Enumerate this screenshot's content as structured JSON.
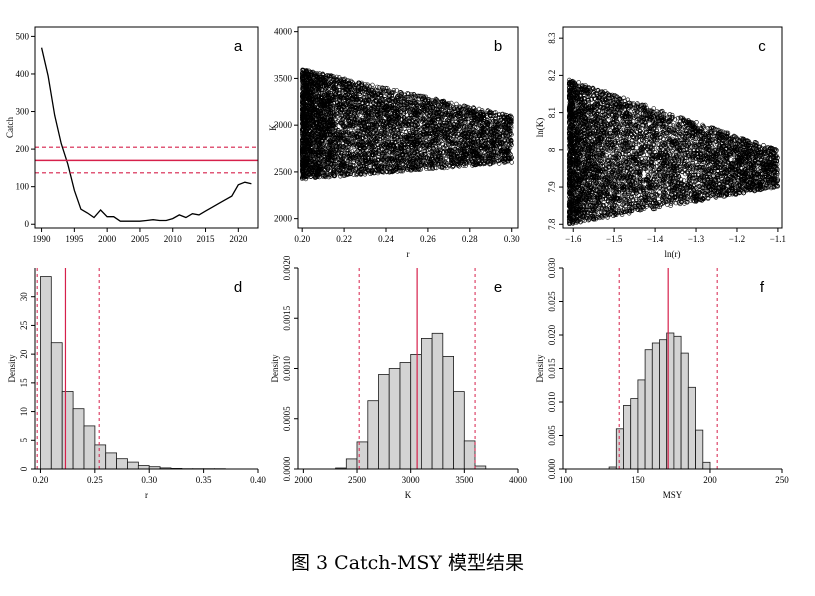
{
  "caption": "图 3 Catch-MSY 模型结果",
  "colors": {
    "red": "#d6204b",
    "red_dashed": "#d6204b",
    "bar": "#d3d3d3",
    "ink": "#000000"
  },
  "chart_data": [
    {
      "panel": "a",
      "type": "line",
      "xlabel": "",
      "ylabel": "Catch",
      "xlim": [
        1989,
        2023
      ],
      "ylim": [
        -10,
        525
      ],
      "xticks": [
        1990,
        1995,
        2000,
        2005,
        2010,
        2015,
        2020
      ],
      "yticks": [
        0,
        100,
        200,
        300,
        400,
        500
      ],
      "x": [
        1990,
        1991,
        1992,
        1993,
        1994,
        1995,
        1996,
        1997,
        1998,
        1999,
        2000,
        2001,
        2002,
        2003,
        2004,
        2005,
        2006,
        2007,
        2008,
        2009,
        2010,
        2011,
        2012,
        2013,
        2014,
        2015,
        2016,
        2017,
        2018,
        2019,
        2020,
        2021,
        2022
      ],
      "y": [
        470,
        395,
        290,
        215,
        160,
        90,
        40,
        30,
        18,
        38,
        20,
        20,
        8,
        8,
        8,
        8,
        10,
        12,
        10,
        10,
        15,
        25,
        18,
        28,
        25,
        35,
        45,
        55,
        65,
        75,
        105,
        112,
        108
      ],
      "hlines": [
        {
          "y": 170,
          "style": "solid"
        },
        {
          "y": 205,
          "style": "dashed"
        },
        {
          "y": 137,
          "style": "dashed"
        }
      ]
    },
    {
      "panel": "b",
      "type": "scatter",
      "xlabel": "r",
      "ylabel": "K",
      "xlim": [
        0.198,
        0.303
      ],
      "ylim": [
        1900,
        4050
      ],
      "xticks": [
        0.2,
        0.22,
        0.24,
        0.26,
        0.28,
        0.3
      ],
      "yticks": [
        2000,
        2500,
        3000,
        3500,
        4000
      ],
      "xtick_labels": [
        "0.20",
        "0.22",
        "0.24",
        "0.26",
        "0.28",
        "0.30"
      ],
      "upper_edge": [
        [
          0.2,
          3600
        ],
        [
          0.3,
          3100
        ]
      ],
      "lower_edge": [
        [
          0.2,
          2420
        ],
        [
          0.3,
          2600
        ]
      ]
    },
    {
      "panel": "c",
      "type": "scatter",
      "xlabel": "ln(r)",
      "ylabel": "ln(K)",
      "xlim": [
        -1.625,
        -1.09
      ],
      "ylim": [
        7.79,
        8.33
      ],
      "xticks": [
        -1.6,
        -1.5,
        -1.4,
        -1.3,
        -1.2,
        -1.1
      ],
      "yticks": [
        7.8,
        7.9,
        8.0,
        8.1,
        8.2,
        8.3
      ],
      "xtick_labels": [
        "−1.6",
        "−1.5",
        "−1.4",
        "−1.3",
        "−1.2",
        "−1.1"
      ],
      "upper_edge": [
        [
          -1.61,
          8.19
        ],
        [
          -1.1,
          8.0
        ]
      ],
      "lower_edge": [
        [
          -1.61,
          7.8
        ],
        [
          -1.1,
          7.9
        ]
      ]
    },
    {
      "panel": "d",
      "type": "histogram",
      "xlabel": "r",
      "ylabel": "Density",
      "xlim": [
        0.195,
        0.4
      ],
      "ylim": [
        0,
        35
      ],
      "xticks": [
        0.2,
        0.25,
        0.3,
        0.35,
        0.4
      ],
      "yticks": [
        0,
        5,
        10,
        15,
        20,
        25,
        30
      ],
      "xtick_labels": [
        "0.20",
        "0.25",
        "0.30",
        "0.35",
        "0.40"
      ],
      "bin_start": 0.2,
      "bin_width": 0.01,
      "values": [
        33.5,
        22,
        13.5,
        10.5,
        7.5,
        4.2,
        2.8,
        1.8,
        1.2,
        0.6,
        0.4,
        0.2,
        0.1,
        0.05,
        0.05,
        0.05,
        0.05
      ],
      "vlines": [
        {
          "x": 0.223,
          "style": "solid"
        },
        {
          "x": 0.197,
          "style": "dashed"
        },
        {
          "x": 0.254,
          "style": "dashed"
        }
      ]
    },
    {
      "panel": "e",
      "type": "histogram",
      "xlabel": "K",
      "ylabel": "Density",
      "xlim": [
        1950,
        4000
      ],
      "ylim": [
        0,
        0.002
      ],
      "xticks": [
        2000,
        2500,
        3000,
        3500,
        4000
      ],
      "yticks": [
        0.0,
        0.0005,
        0.001,
        0.0015,
        0.002
      ],
      "ytick_labels": [
        "0.0000",
        "0.0005",
        "0.0010",
        "0.0015",
        "0.0020"
      ],
      "bin_start": 2300,
      "bin_width": 100,
      "values": [
        1e-05,
        0.0001,
        0.00027,
        0.00068,
        0.00094,
        0.001,
        0.00106,
        0.00114,
        0.0013,
        0.00135,
        0.00112,
        0.00077,
        0.00028,
        3e-05
      ],
      "vlines": [
        {
          "x": 3060,
          "style": "solid"
        },
        {
          "x": 2520,
          "style": "dashed"
        },
        {
          "x": 3600,
          "style": "dashed"
        }
      ]
    },
    {
      "panel": "f",
      "type": "histogram",
      "xlabel": "MSY",
      "ylabel": "Density",
      "xlim": [
        98,
        250
      ],
      "ylim": [
        0,
        0.03
      ],
      "xticks": [
        100,
        150,
        200,
        250
      ],
      "yticks": [
        0.0,
        0.005,
        0.01,
        0.015,
        0.02,
        0.025,
        0.03
      ],
      "ytick_labels": [
        "0.000",
        "0.005",
        "0.010",
        "0.015",
        "0.020",
        "0.025",
        "0.030"
      ],
      "bin_start": 130,
      "bin_width": 5,
      "values": [
        0.0003,
        0.006,
        0.0095,
        0.0105,
        0.0133,
        0.0178,
        0.0188,
        0.0193,
        0.0203,
        0.0198,
        0.0173,
        0.0122,
        0.0058,
        0.001
      ],
      "vlines": [
        {
          "x": 171,
          "style": "solid"
        },
        {
          "x": 137,
          "style": "dashed"
        },
        {
          "x": 205,
          "style": "dashed"
        }
      ]
    }
  ]
}
